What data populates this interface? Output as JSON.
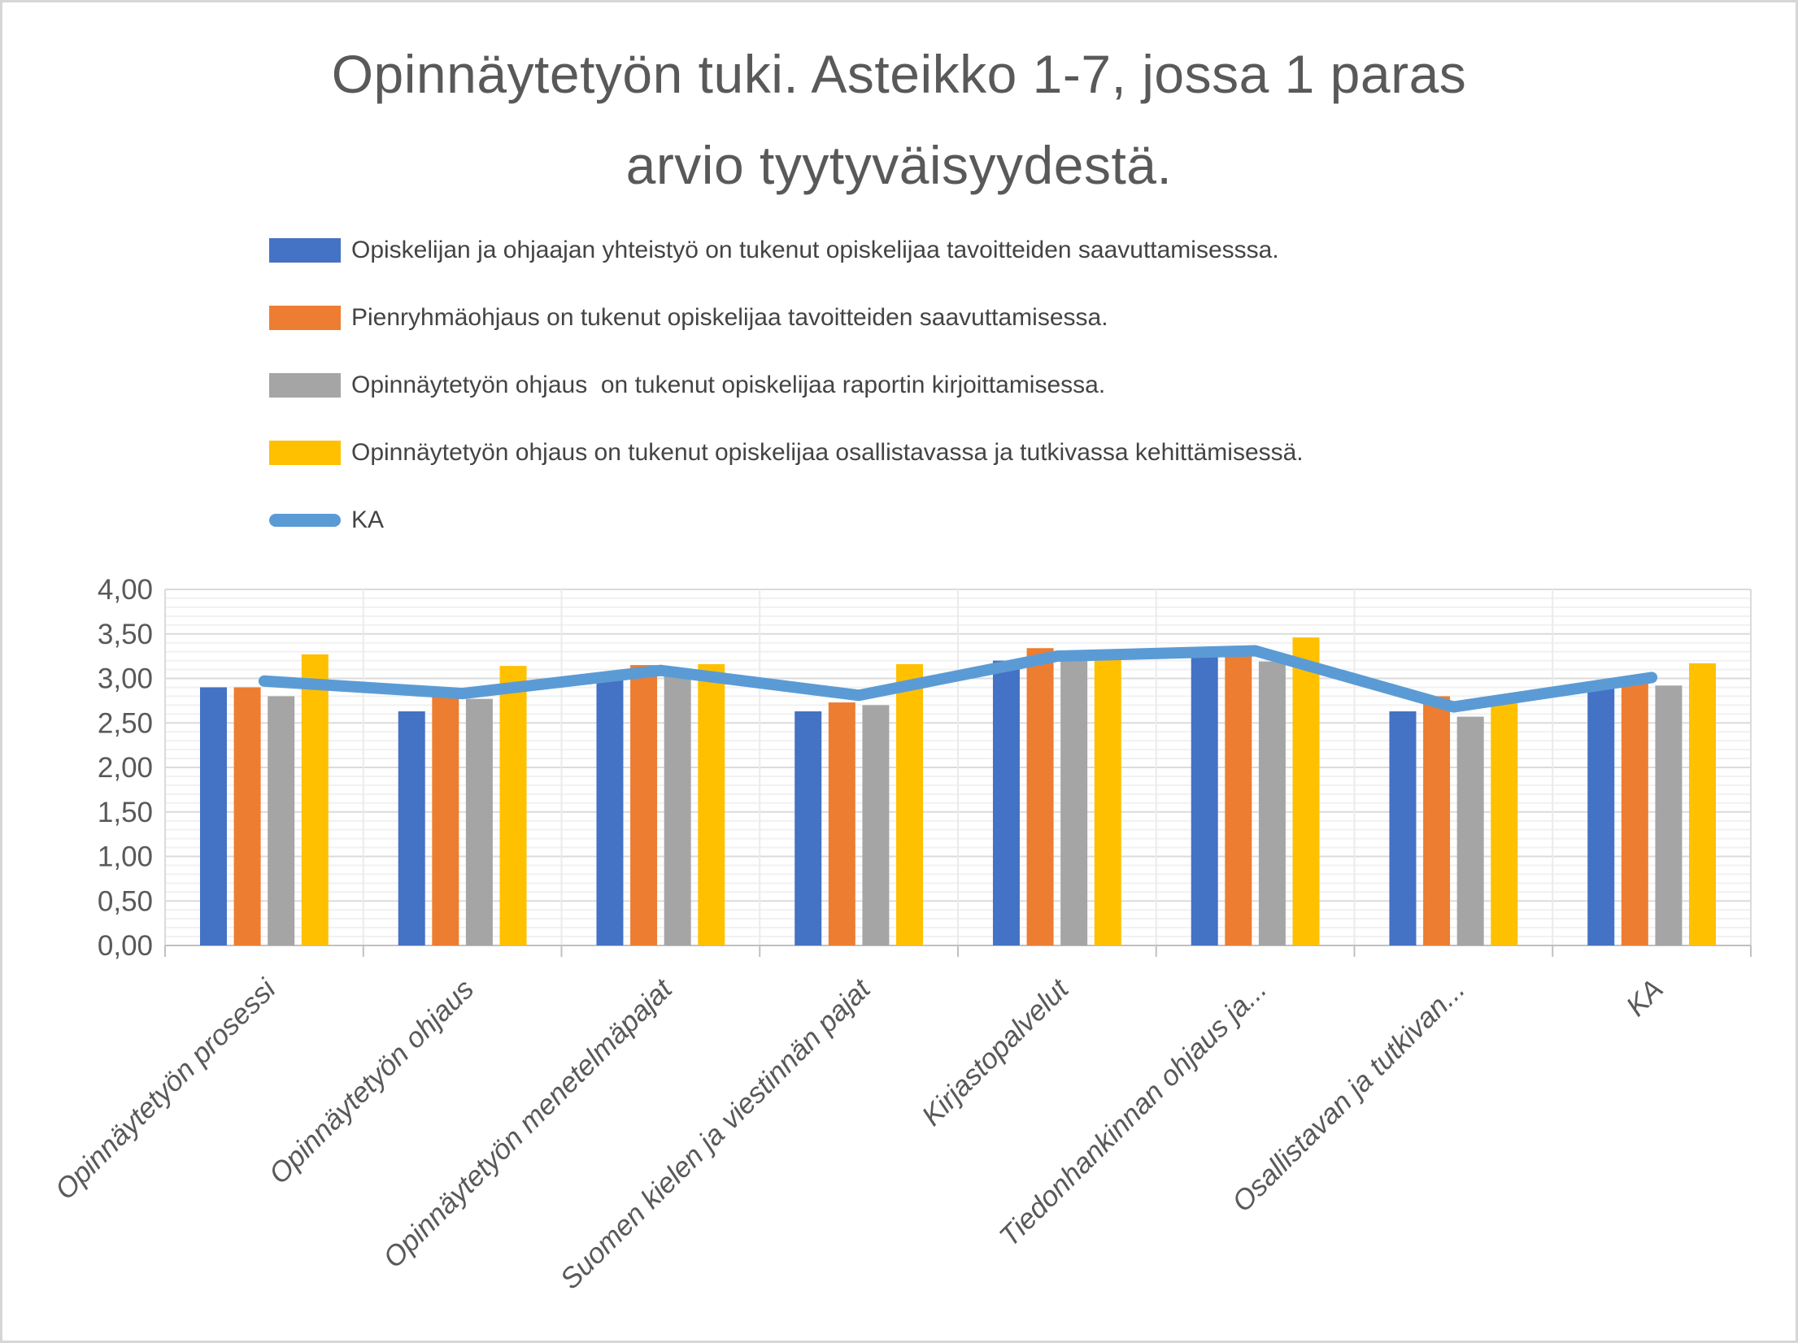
{
  "page": {
    "background": "#ffffff",
    "border_color": "#d6d6d6"
  },
  "title": {
    "text": "Opinnäytetyön tuki. Asteikko 1-7, jossa 1 paras arvio tyytyväisyydestä.",
    "lines": [
      "Opinnäytetyön tuki. Asteikko 1-7, jossa 1 paras",
      "arvio tyytyväisyydestä."
    ],
    "color": "#595959"
  },
  "chart_data": {
    "type": "bar",
    "title": "Opinnäytetyön tuki. Asteikko 1-7, jossa 1 paras arvio tyytyväisyydestä.",
    "categories": [
      "Opinnäytetyön prosessi",
      "Opinnäytetyön ohjaus",
      "Opinnäytetyön menetelmäpajat",
      "Suomen kielen ja viestinnän pajat",
      "Kirjastopalvelut",
      "Tiedonhankinnan ohjaus ja...",
      "Osallistavan ja tutkivan...",
      "KA"
    ],
    "series": [
      {
        "name": "Opiskelijan ja ohjaajan yhteistyö on tukenut opiskelijaa tavoitteiden saavuttamisesssa.",
        "type": "bar",
        "color": "#4472C4",
        "values": [
          2.9,
          2.63,
          3.0,
          2.63,
          3.2,
          3.28,
          2.63,
          2.95
        ]
      },
      {
        "name": "Pienryhmäohjaus on tukenut opiskelijaa tavoitteiden saavuttamisessa.",
        "type": "bar",
        "color": "#ED7D31",
        "values": [
          2.9,
          2.79,
          3.15,
          2.73,
          3.34,
          3.3,
          2.8,
          3.0
        ]
      },
      {
        "name": "Opinnäytetyön ohjaus  on tukenut opiskelijaa raportin kirjoittamisessa.",
        "type": "bar",
        "color": "#A5A5A5",
        "values": [
          2.8,
          2.77,
          3.05,
          2.7,
          3.22,
          3.19,
          2.57,
          2.92
        ]
      },
      {
        "name": "Opinnäytetyön ohjaus on tukenut opiskelijaa osallistavassa ja tutkivassa kehittämisessä.",
        "type": "bar",
        "color": "#FFC000",
        "values": [
          3.27,
          3.14,
          3.16,
          3.16,
          3.23,
          3.46,
          2.72,
          3.17
        ]
      },
      {
        "name": "KA",
        "type": "line",
        "color": "#5B9BD5",
        "values": [
          2.97,
          2.83,
          3.09,
          2.81,
          3.25,
          3.31,
          2.68,
          3.01
        ]
      }
    ],
    "xlabel": "",
    "ylabel": "",
    "ylim": [
      0,
      4
    ],
    "y_major_step": 0.5,
    "y_minor_step": 0.1,
    "y_tick_labels": [
      "0,00",
      "0,50",
      "1,00",
      "1,50",
      "2,00",
      "2,50",
      "3,00",
      "3,50",
      "4,00"
    ],
    "x_tick_label_rotation": -45,
    "grid": {
      "horizontal_major": true,
      "horizontal_minor": true,
      "vertical_category_boundaries": true
    },
    "legend_position": "top-left",
    "axis_text_color": "#595959"
  }
}
